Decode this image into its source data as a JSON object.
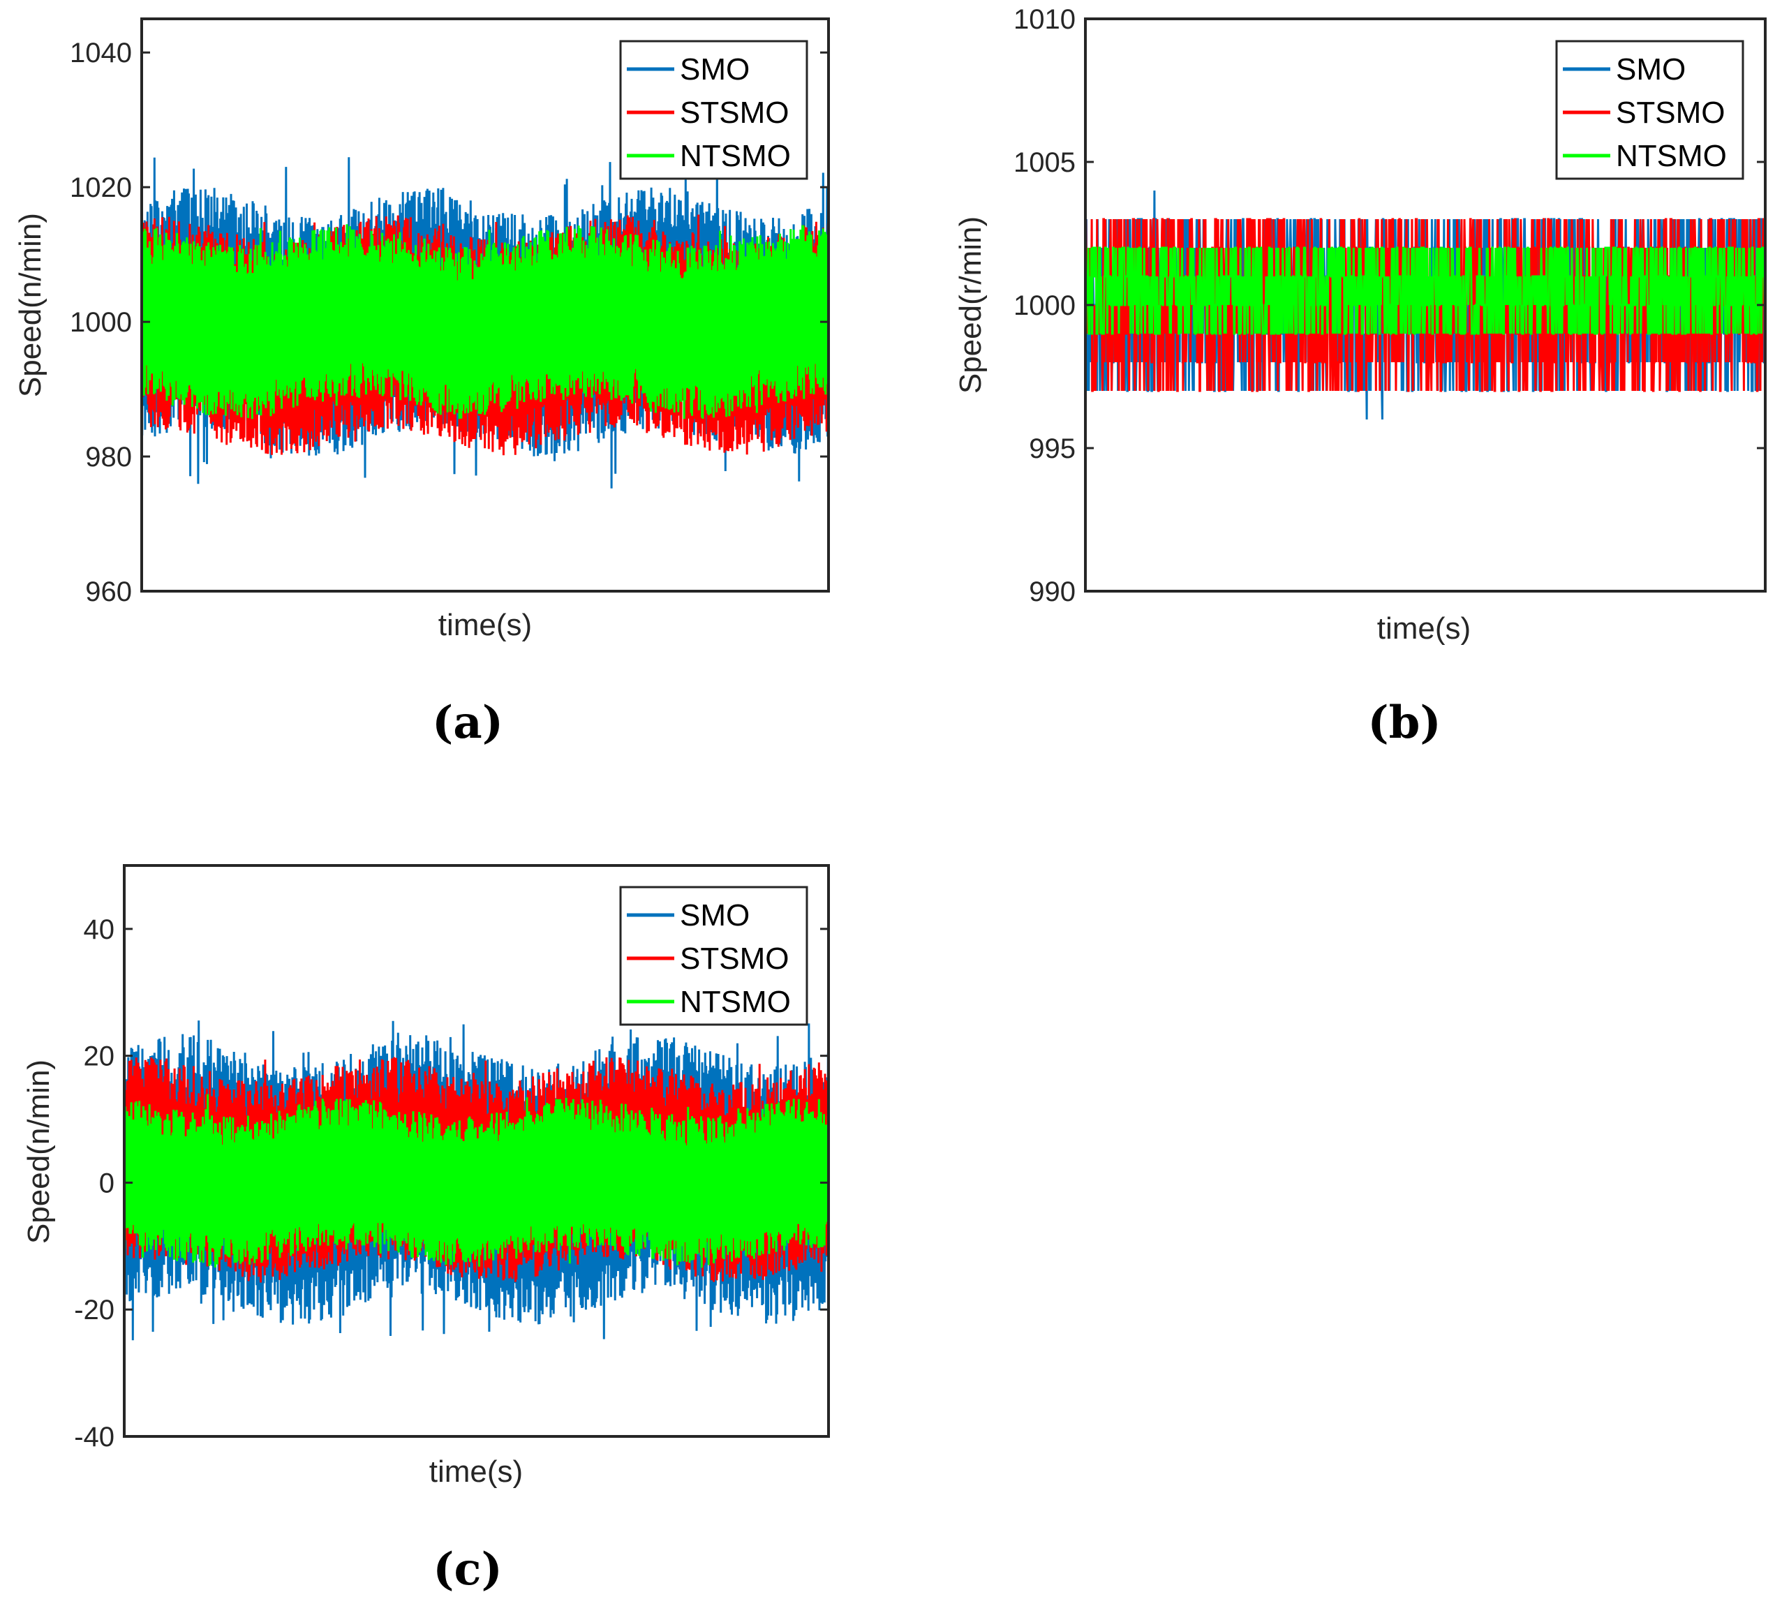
{
  "chart_data": [
    {
      "id": "a",
      "type": "line",
      "panel_label": "(a)",
      "xlabel": "time(s)",
      "ylabel": "Speed(n/min)",
      "ylim": [
        960,
        1045
      ],
      "yticks": [
        960,
        980,
        1000,
        1020,
        1040
      ],
      "ytick_labels": [
        "960",
        "980",
        "1000",
        "1020",
        "1040"
      ],
      "legend_position": "top-right",
      "series": [
        {
          "name": "SMO",
          "color": "#0072BD",
          "center": 1000,
          "band": [
            982,
            1018
          ],
          "spike_range": [
            975,
            1025
          ],
          "noise": "continuous"
        },
        {
          "name": "STSMO",
          "color": "#FF0000",
          "center": 1000,
          "band": [
            982,
            1014
          ],
          "spike_range": [
            981,
            1016
          ],
          "noise": "continuous"
        },
        {
          "name": "NTSMO",
          "color": "#00FF00",
          "center": 1000,
          "band": [
            987,
            1013
          ],
          "spike_range": [
            986,
            1014
          ],
          "noise": "continuous"
        }
      ]
    },
    {
      "id": "b",
      "type": "line",
      "panel_label": "(b)",
      "xlabel": "time(s)",
      "ylabel": "Speed(r/min)",
      "ylim": [
        990,
        1010
      ],
      "yticks": [
        990,
        995,
        1000,
        1005,
        1010
      ],
      "ytick_labels": [
        "990",
        "995",
        "1000",
        "1005",
        "1010"
      ],
      "legend_position": "top-right",
      "series": [
        {
          "name": "SMO",
          "color": "#0072BD",
          "center": 1000,
          "band": [
            997,
            1003
          ],
          "spike_range": [
            996,
            1004
          ],
          "noise": "quantized"
        },
        {
          "name": "STSMO",
          "color": "#FF0000",
          "center": 1000,
          "band": [
            997,
            1003
          ],
          "spike_range": [
            997,
            1003
          ],
          "noise": "quantized"
        },
        {
          "name": "NTSMO",
          "color": "#00FF00",
          "center": 1000.5,
          "band": [
            999,
            1002
          ],
          "spike_range": [
            999,
            1002
          ],
          "noise": "quantized"
        }
      ]
    },
    {
      "id": "c",
      "type": "line",
      "panel_label": "(c)",
      "xlabel": "time(s)",
      "ylabel": "Speed(n/min)",
      "ylim": [
        -40,
        50
      ],
      "yticks": [
        -40,
        -20,
        0,
        20,
        40
      ],
      "ytick_labels": [
        "-40",
        "-20",
        "0",
        "20",
        "40"
      ],
      "legend_position": "top-right",
      "series": [
        {
          "name": "SMO",
          "color": "#0072BD",
          "center": 0,
          "band": [
            -20,
            21
          ],
          "spike_range": [
            -25,
            26
          ],
          "noise": "continuous"
        },
        {
          "name": "STSMO",
          "color": "#FF0000",
          "center": 0,
          "band": [
            -14,
            18
          ],
          "spike_range": [
            -15,
            20
          ],
          "noise": "continuous"
        },
        {
          "name": "NTSMO",
          "color": "#00FF00",
          "center": 0,
          "band": [
            -12,
            12
          ],
          "spike_range": [
            -13,
            14
          ],
          "noise": "continuous"
        }
      ]
    }
  ]
}
